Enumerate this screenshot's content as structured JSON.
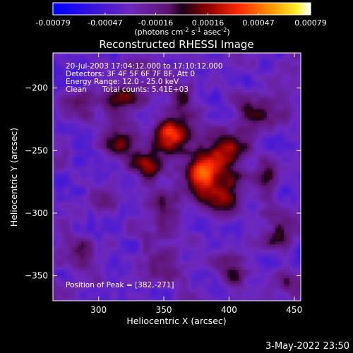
{
  "chart_data": {
    "type": "heatmap",
    "title": "Reconstructed RHESSI Image",
    "xlabel": "Heliocentric X (arcsec)",
    "ylabel": "Heliocentric Y (arcsec)",
    "xlim": [
      265,
      455
    ],
    "ylim": [
      -370,
      -172
    ],
    "xticks": [
      300,
      350,
      400,
      450
    ],
    "yticks": [
      -200,
      -250,
      -300,
      -350
    ],
    "colorbar": {
      "ticks": [
        "-0.00079",
        "-0.00047",
        "-0.00016",
        "0.00016",
        "0.00047",
        "0.00079"
      ],
      "unit_prefix": "(photons cm",
      "unit_exp1": "-2",
      "unit_mid1": " s",
      "unit_exp2": "-1",
      "unit_mid2": " asec",
      "unit_exp3": "-2",
      "unit_suffix": ")",
      "range": [
        -0.00079,
        0.00079
      ]
    },
    "annotations": {
      "time_range": "20-Jul-2003 17:04:12.000 to 17:10:12.000",
      "detectors": "Detectors: 3F 4F 5F 6F 7F 8F, Att 0",
      "energy": "Energy Range: 12.0 - 25.0 keV",
      "method": "Clean",
      "counts": "Total counts: 5.41E+03",
      "peak": "Position of Peak = [382,-271]"
    },
    "peak": [
      382,
      -271
    ],
    "sources": [
      {
        "x": 382,
        "y": -268,
        "amp": 0.00076,
        "sx": 14,
        "sy": 11
      },
      {
        "x": 355,
        "y": -237,
        "amp": 0.0006,
        "sx": 10,
        "sy": 9
      },
      {
        "x": 338,
        "y": -262,
        "amp": 0.0005,
        "sx": 9,
        "sy": 8
      },
      {
        "x": 400,
        "y": -250,
        "amp": 0.00042,
        "sx": 10,
        "sy": 9
      },
      {
        "x": 392,
        "y": -292,
        "amp": 0.0004,
        "sx": 11,
        "sy": 9
      },
      {
        "x": 318,
        "y": -245,
        "amp": 0.00038,
        "sx": 9,
        "sy": 9
      },
      {
        "x": 320,
        "y": -208,
        "amp": 0.00032,
        "sx": 10,
        "sy": 8
      },
      {
        "x": 365,
        "y": -205,
        "amp": 0.0003,
        "sx": 9,
        "sy": 8
      },
      {
        "x": 420,
        "y": -220,
        "amp": 0.0003,
        "sx": 10,
        "sy": 9
      },
      {
        "x": 352,
        "y": -295,
        "amp": 0.0003,
        "sx": 9,
        "sy": 9
      },
      {
        "x": 305,
        "y": -290,
        "amp": 0.00022,
        "sx": 9,
        "sy": 9
      },
      {
        "x": 440,
        "y": -315,
        "amp": 0.00034,
        "sx": 8,
        "sy": 9
      },
      {
        "x": 290,
        "y": -218,
        "amp": 0.00024,
        "sx": 8,
        "sy": 8
      },
      {
        "x": 430,
        "y": -270,
        "amp": 0.00024,
        "sx": 8,
        "sy": 8
      },
      {
        "x": 355,
        "y": -340,
        "amp": 0.0002,
        "sx": 10,
        "sy": 8
      },
      {
        "x": 405,
        "y": -348,
        "amp": 0.00026,
        "sx": 10,
        "sy": 8
      },
      {
        "x": 445,
        "y": -360,
        "amp": 0.00024,
        "sx": 8,
        "sy": 7
      },
      {
        "x": 290,
        "y": -330,
        "amp": 0.00018,
        "sx": 9,
        "sy": 8
      }
    ],
    "background": -0.00035
  },
  "footer": {
    "date": "3-May-2022 23:50"
  }
}
